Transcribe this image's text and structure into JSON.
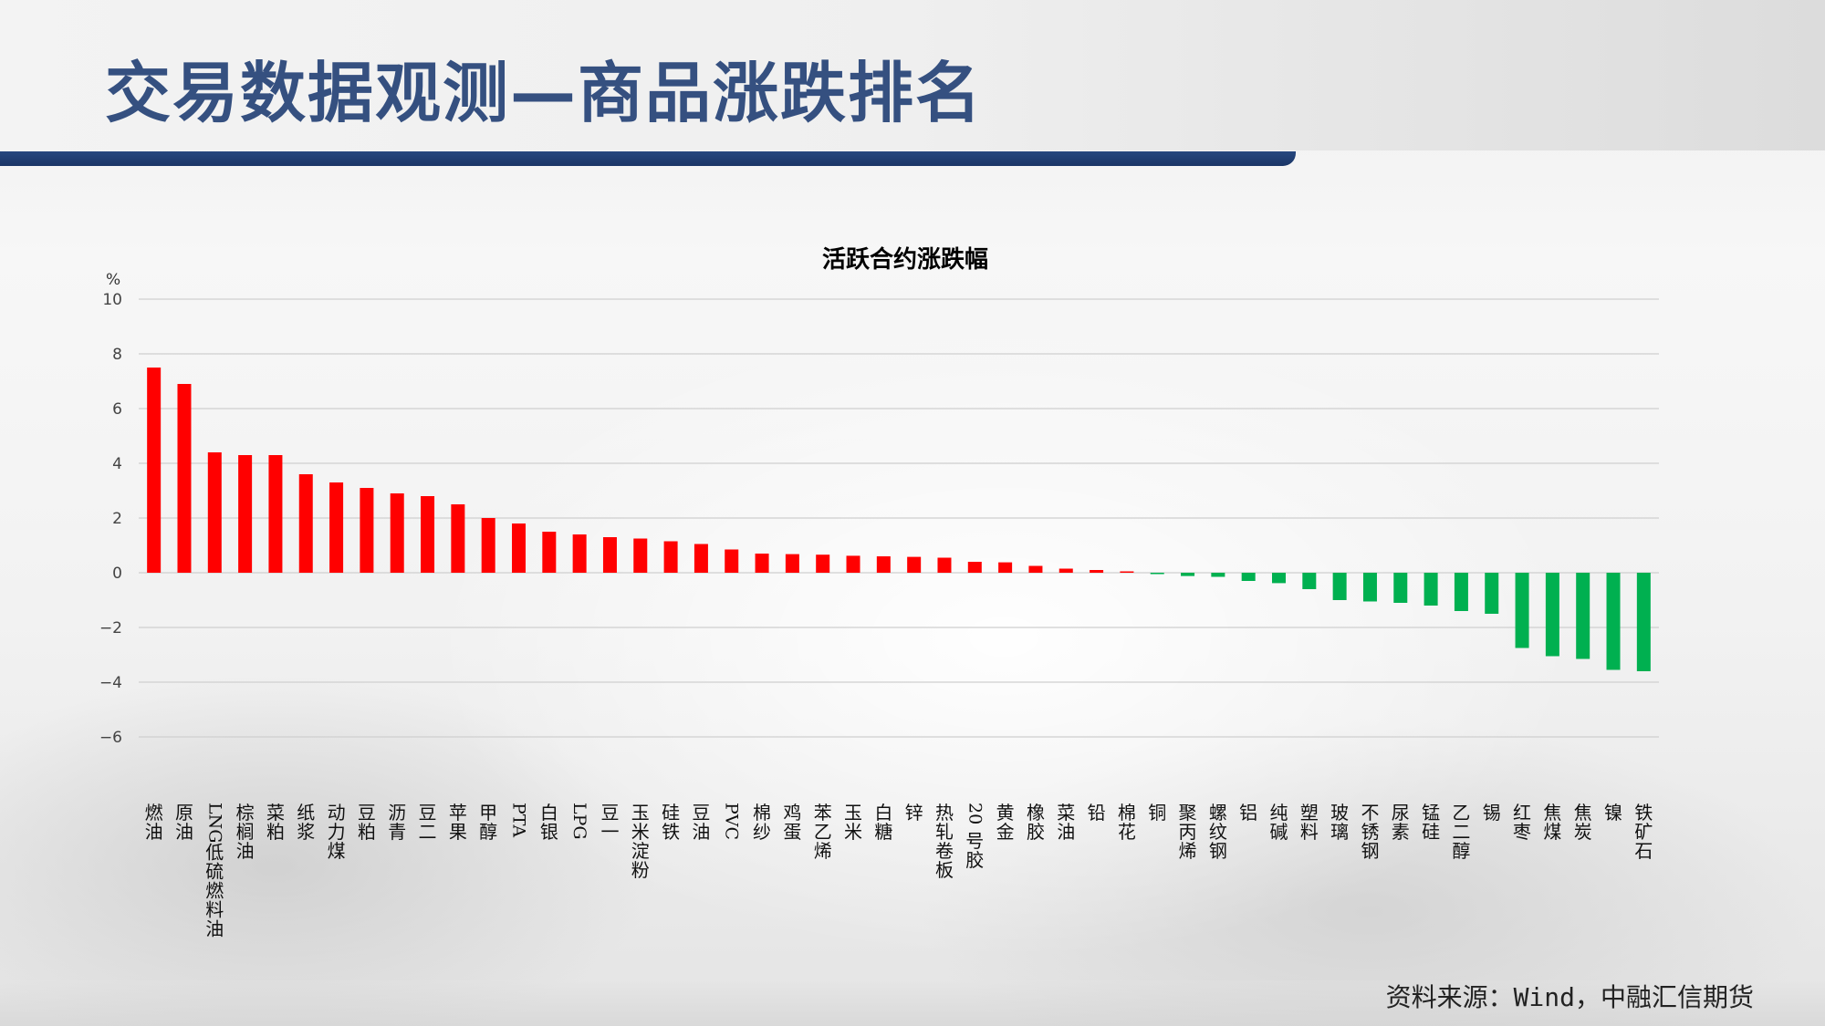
{
  "page": {
    "title": "交易数据观测—商品涨跌排名",
    "source": "资料来源：Wind，中融汇信期货"
  },
  "colors": {
    "positive": "#ff0000",
    "negative": "#00b050",
    "title": "#355080",
    "accent_bar": "#1f3c73"
  },
  "chart_data": {
    "type": "bar",
    "title": "活跃合约涨跌幅",
    "ylabel": "%",
    "ylim": [
      -6,
      10
    ],
    "yticks": [
      "10",
      "8",
      "6",
      "4",
      "2",
      "0",
      "-2",
      "-4",
      "-6"
    ],
    "grid": true,
    "categories": [
      "燃油",
      "原油",
      "LNG低硫燃料油",
      "棕榈油",
      "菜粕",
      "纸浆",
      "动力煤",
      "豆粕",
      "沥青",
      "豆二",
      "苹果",
      "甲醇",
      "PTA",
      "白银",
      "LPG",
      "豆一",
      "玉米淀粉",
      "硅铁",
      "豆油",
      "PVC",
      "棉纱",
      "鸡蛋",
      "苯乙烯",
      "玉米",
      "白糖",
      "锌",
      "热轧卷板",
      "20号胶",
      "黄金",
      "橡胶",
      "菜油",
      "铅",
      "棉花",
      "铜",
      "聚丙烯",
      "螺纹钢",
      "铝",
      "纯碱",
      "塑料",
      "玻璃",
      "不锈钢",
      "尿素",
      "锰硅",
      "乙二醇",
      "锡",
      "红枣",
      "焦煤",
      "焦炭",
      "镍",
      "铁矿石"
    ],
    "values": [
      7.5,
      6.9,
      4.4,
      4.3,
      4.3,
      3.6,
      3.3,
      3.1,
      2.9,
      2.8,
      2.5,
      2.0,
      1.8,
      1.5,
      1.4,
      1.3,
      1.25,
      1.15,
      1.05,
      0.85,
      0.7,
      0.68,
      0.66,
      0.62,
      0.6,
      0.58,
      0.55,
      0.4,
      0.38,
      0.25,
      0.15,
      0.1,
      0.05,
      -0.05,
      -0.12,
      -0.15,
      -0.3,
      -0.38,
      -0.6,
      -1.0,
      -1.05,
      -1.1,
      -1.2,
      -1.4,
      -1.5,
      -2.75,
      -3.05,
      -3.15,
      -3.55,
      -3.6
    ]
  }
}
